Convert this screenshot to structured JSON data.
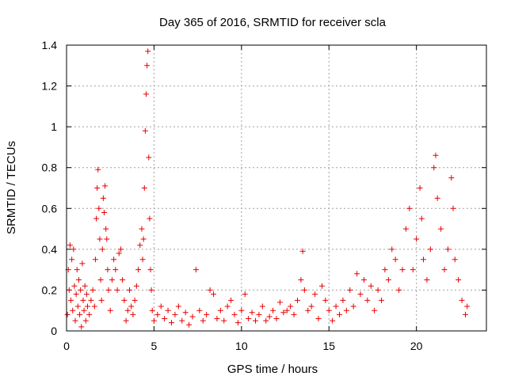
{
  "chart_data": {
    "type": "scatter",
    "title": "Day 365 of 2016, SRMTID for receiver scla",
    "xlabel": "GPS time / hours",
    "ylabel": "SRMTID / TECUs",
    "xlim": [
      0,
      24
    ],
    "ylim": [
      0,
      1.4
    ],
    "x_ticks": [
      0,
      5,
      10,
      15,
      20
    ],
    "y_ticks": [
      0,
      0.2,
      0.4,
      0.6,
      0.8,
      1,
      1.2,
      1.4
    ],
    "x_tick_labels": [
      "0",
      "5",
      "10",
      "15",
      "20"
    ],
    "y_tick_labels": [
      "0",
      "0.2",
      "0.4",
      "0.6",
      "0.8",
      "1",
      "1.2",
      "1.4"
    ],
    "grid": true,
    "marker": "+",
    "color": "#e60000",
    "series": [
      {
        "name": "SRMTID",
        "points": [
          [
            0.05,
            0.08
          ],
          [
            0.1,
            0.3
          ],
          [
            0.15,
            0.2
          ],
          [
            0.2,
            0.42
          ],
          [
            0.25,
            0.15
          ],
          [
            0.3,
            0.35
          ],
          [
            0.35,
            0.1
          ],
          [
            0.4,
            0.4
          ],
          [
            0.45,
            0.22
          ],
          [
            0.5,
            0.05
          ],
          [
            0.55,
            0.18
          ],
          [
            0.6,
            0.3
          ],
          [
            0.65,
            0.12
          ],
          [
            0.7,
            0.25
          ],
          [
            0.75,
            0.08
          ],
          [
            0.8,
            0.2
          ],
          [
            0.85,
            0.02
          ],
          [
            0.9,
            0.33
          ],
          [
            0.95,
            0.15
          ],
          [
            1.0,
            0.1
          ],
          [
            1.05,
            0.22
          ],
          [
            1.1,
            0.05
          ],
          [
            1.15,
            0.18
          ],
          [
            1.2,
            0.12
          ],
          [
            1.3,
            0.08
          ],
          [
            1.4,
            0.15
          ],
          [
            1.5,
            0.2
          ],
          [
            1.6,
            0.12
          ],
          [
            1.65,
            0.35
          ],
          [
            1.7,
            0.55
          ],
          [
            1.75,
            0.7
          ],
          [
            1.8,
            0.79
          ],
          [
            1.85,
            0.6
          ],
          [
            1.9,
            0.45
          ],
          [
            1.95,
            0.25
          ],
          [
            2.0,
            0.15
          ],
          [
            2.05,
            0.4
          ],
          [
            2.1,
            0.65
          ],
          [
            2.15,
            0.58
          ],
          [
            2.2,
            0.71
          ],
          [
            2.25,
            0.5
          ],
          [
            2.3,
            0.45
          ],
          [
            2.35,
            0.3
          ],
          [
            2.4,
            0.2
          ],
          [
            2.5,
            0.1
          ],
          [
            2.6,
            0.25
          ],
          [
            2.7,
            0.35
          ],
          [
            2.8,
            0.3
          ],
          [
            2.9,
            0.2
          ],
          [
            3.0,
            0.38
          ],
          [
            3.1,
            0.4
          ],
          [
            3.2,
            0.25
          ],
          [
            3.3,
            0.15
          ],
          [
            3.4,
            0.05
          ],
          [
            3.5,
            0.1
          ],
          [
            3.6,
            0.2
          ],
          [
            3.7,
            0.12
          ],
          [
            3.8,
            0.08
          ],
          [
            3.9,
            0.15
          ],
          [
            4.0,
            0.22
          ],
          [
            4.1,
            0.3
          ],
          [
            4.2,
            0.42
          ],
          [
            4.3,
            0.5
          ],
          [
            4.35,
            0.35
          ],
          [
            4.4,
            0.45
          ],
          [
            4.45,
            0.7
          ],
          [
            4.5,
            0.98
          ],
          [
            4.55,
            1.16
          ],
          [
            4.6,
            1.3
          ],
          [
            4.65,
            1.37
          ],
          [
            4.7,
            0.85
          ],
          [
            4.75,
            0.55
          ],
          [
            4.8,
            0.3
          ],
          [
            4.85,
            0.2
          ],
          [
            4.9,
            0.1
          ],
          [
            5.0,
            0.05
          ],
          [
            5.2,
            0.08
          ],
          [
            5.4,
            0.12
          ],
          [
            5.6,
            0.06
          ],
          [
            5.8,
            0.1
          ],
          [
            6.0,
            0.04
          ],
          [
            6.2,
            0.08
          ],
          [
            6.4,
            0.12
          ],
          [
            6.6,
            0.05
          ],
          [
            6.8,
            0.09
          ],
          [
            7.0,
            0.03
          ],
          [
            7.2,
            0.07
          ],
          [
            7.4,
            0.3
          ],
          [
            7.6,
            0.1
          ],
          [
            7.8,
            0.05
          ],
          [
            8.0,
            0.08
          ],
          [
            8.2,
            0.2
          ],
          [
            8.4,
            0.18
          ],
          [
            8.6,
            0.06
          ],
          [
            8.8,
            0.1
          ],
          [
            9.0,
            0.05
          ],
          [
            9.2,
            0.12
          ],
          [
            9.4,
            0.15
          ],
          [
            9.6,
            0.08
          ],
          [
            9.8,
            0.04
          ],
          [
            10.0,
            0.1
          ],
          [
            10.2,
            0.18
          ],
          [
            10.4,
            0.06
          ],
          [
            10.6,
            0.09
          ],
          [
            10.8,
            0.05
          ],
          [
            11.0,
            0.08
          ],
          [
            11.2,
            0.12
          ],
          [
            11.4,
            0.05
          ],
          [
            11.6,
            0.07
          ],
          [
            11.8,
            0.1
          ],
          [
            12.0,
            0.06
          ],
          [
            12.2,
            0.14
          ],
          [
            12.4,
            0.09
          ],
          [
            12.6,
            0.1
          ],
          [
            12.8,
            0.12
          ],
          [
            13.0,
            0.08
          ],
          [
            13.2,
            0.15
          ],
          [
            13.4,
            0.25
          ],
          [
            13.5,
            0.39
          ],
          [
            13.6,
            0.2
          ],
          [
            13.8,
            0.1
          ],
          [
            14.0,
            0.12
          ],
          [
            14.2,
            0.18
          ],
          [
            14.4,
            0.06
          ],
          [
            14.6,
            0.22
          ],
          [
            14.8,
            0.15
          ],
          [
            15.0,
            0.1
          ],
          [
            15.2,
            0.05
          ],
          [
            15.4,
            0.12
          ],
          [
            15.6,
            0.08
          ],
          [
            15.8,
            0.15
          ],
          [
            16.0,
            0.1
          ],
          [
            16.2,
            0.2
          ],
          [
            16.4,
            0.12
          ],
          [
            16.6,
            0.28
          ],
          [
            16.8,
            0.18
          ],
          [
            17.0,
            0.25
          ],
          [
            17.2,
            0.15
          ],
          [
            17.4,
            0.22
          ],
          [
            17.6,
            0.1
          ],
          [
            17.8,
            0.2
          ],
          [
            18.0,
            0.15
          ],
          [
            18.2,
            0.3
          ],
          [
            18.4,
            0.25
          ],
          [
            18.6,
            0.4
          ],
          [
            18.8,
            0.35
          ],
          [
            19.0,
            0.2
          ],
          [
            19.2,
            0.3
          ],
          [
            19.4,
            0.5
          ],
          [
            19.6,
            0.6
          ],
          [
            19.8,
            0.3
          ],
          [
            20.0,
            0.45
          ],
          [
            20.2,
            0.7
          ],
          [
            20.3,
            0.55
          ],
          [
            20.4,
            0.35
          ],
          [
            20.6,
            0.25
          ],
          [
            20.8,
            0.4
          ],
          [
            21.0,
            0.8
          ],
          [
            21.1,
            0.86
          ],
          [
            21.2,
            0.65
          ],
          [
            21.4,
            0.5
          ],
          [
            21.6,
            0.3
          ],
          [
            21.8,
            0.4
          ],
          [
            22.0,
            0.75
          ],
          [
            22.1,
            0.6
          ],
          [
            22.2,
            0.35
          ],
          [
            22.4,
            0.25
          ],
          [
            22.6,
            0.15
          ],
          [
            22.8,
            0.08
          ],
          [
            22.9,
            0.12
          ]
        ]
      }
    ]
  }
}
